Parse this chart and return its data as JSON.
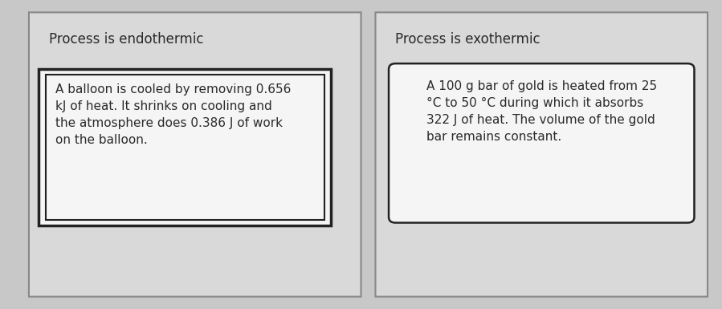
{
  "bg_color": "#c8c8c8",
  "panel_bg": "#d9d9d9",
  "panel_edge": "#888888",
  "panel_edge_lw": 1.2,
  "inner_box_bg": "#f5f5f5",
  "inner_box_edge": "#222222",
  "text_color": "#2a2a2a",
  "left_title": "Process is endothermic",
  "right_title": "Process is exothermic",
  "left_text": "A balloon is cooled by removing 0.656\nkJ of heat. It shrinks on cooling and\nthe atmosphere does 0.386 J of work\non the balloon.",
  "right_text": "A 100 g bar of gold is heated from 25\n°C to 50 °C during which it absorbs\n322 J of heat. The volume of the gold\nbar remains constant.",
  "title_fontsize": 12,
  "body_fontsize": 11
}
